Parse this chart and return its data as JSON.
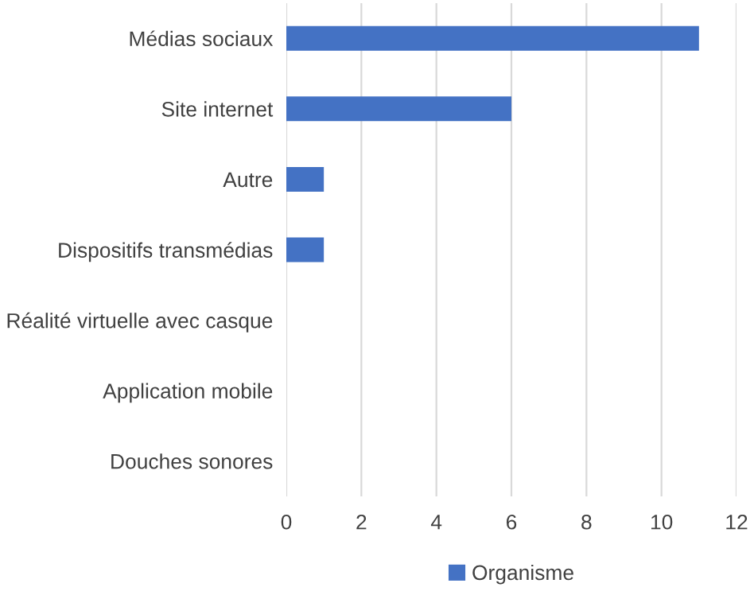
{
  "chart_data": {
    "type": "bar",
    "orientation": "horizontal",
    "categories": [
      "Médias sociaux",
      "Site internet",
      "Autre",
      "Dispositifs transmédias",
      "Réalité virtuelle avec casque",
      "Application mobile",
      "Douches sonores"
    ],
    "series": [
      {
        "name": "Organisme",
        "color": "#4472c4",
        "values": [
          11,
          6,
          1,
          1,
          0,
          0,
          0
        ]
      }
    ],
    "xlim": [
      0,
      12
    ],
    "xticks": [
      0,
      2,
      4,
      6,
      8,
      10,
      12
    ],
    "grid": "x",
    "legend": "bottom"
  }
}
